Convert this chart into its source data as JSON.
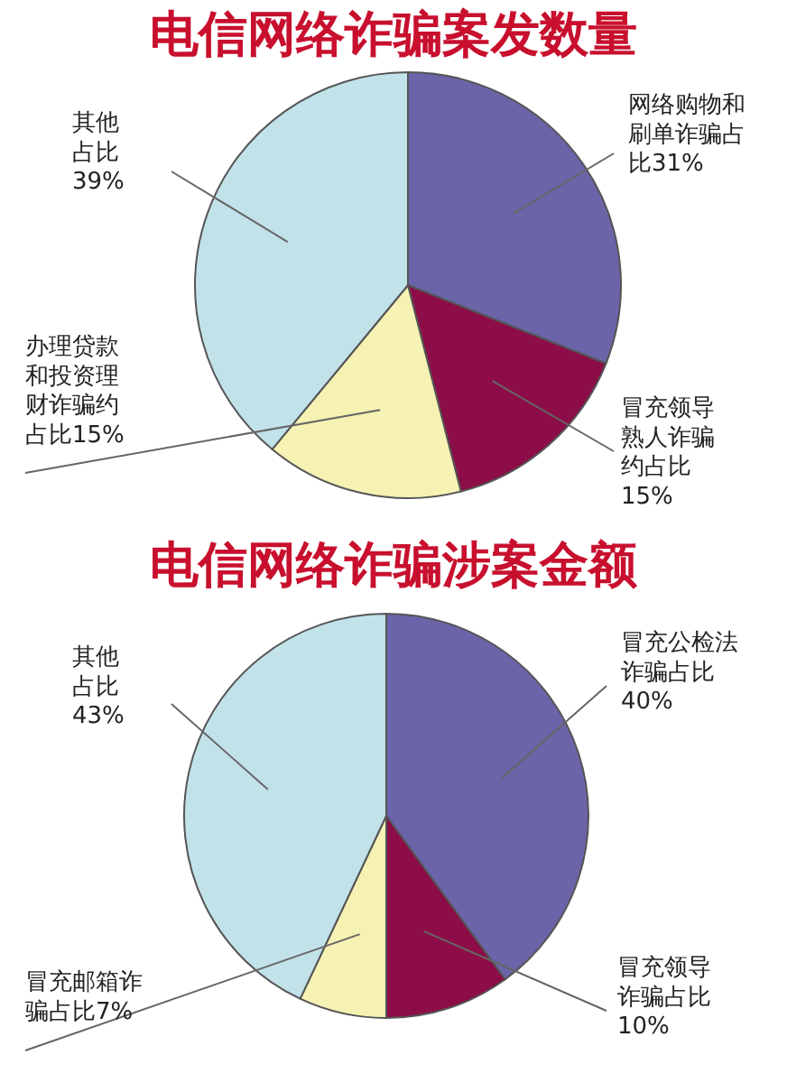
{
  "chart_data": [
    {
      "type": "pie",
      "title": "电信网络诈骗案发数量",
      "categories": [
        "网络购物和刷单诈骗占比",
        "冒充领导熟人诈骗约占比",
        "办理贷款和投资理财诈骗约占比",
        "其他占比"
      ],
      "values": [
        31,
        15,
        15,
        39
      ],
      "value_labels": [
        "31%",
        "15%",
        "15%",
        "39%"
      ],
      "colors": [
        "#6b64a8",
        "#8c0d47",
        "#f6f2b4",
        "#c2e2ea"
      ]
    },
    {
      "type": "pie",
      "title": "电信网络诈骗涉案金额",
      "categories": [
        "冒充公检法诈骗占比",
        "冒充领导诈骗占比",
        "冒充邮箱诈骗占比",
        "其他占比"
      ],
      "values": [
        40,
        10,
        7,
        43
      ],
      "value_labels": [
        "40%",
        "10%",
        "7%",
        "43%"
      ],
      "colors": [
        "#6b64a8",
        "#8c0d47",
        "#f6f2b4",
        "#c2e2ea"
      ]
    }
  ]
}
